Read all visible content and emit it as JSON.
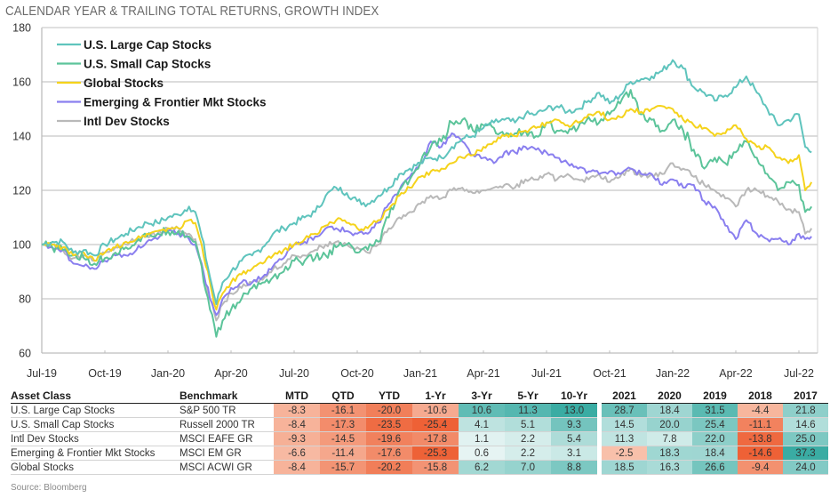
{
  "title": "CALENDAR YEAR & TRAILING TOTAL RETURNS, GROWTH INDEX",
  "source": "Source: Bloomberg",
  "chart_data": {
    "type": "line",
    "title": "CALENDAR YEAR & TRAILING TOTAL RETURNS, GROWTH INDEX",
    "xlabel": "",
    "ylabel": "",
    "ylim": [
      60,
      180
    ],
    "yticks": [
      60,
      80,
      100,
      120,
      140,
      160,
      180
    ],
    "xlim": [
      0,
      36.8
    ],
    "xticks": [
      {
        "pos": 0,
        "label": "Jul-19"
      },
      {
        "pos": 3,
        "label": "Oct-19"
      },
      {
        "pos": 6,
        "label": "Jan-20"
      },
      {
        "pos": 9,
        "label": "Apr-20"
      },
      {
        "pos": 12,
        "label": "Jul-20"
      },
      {
        "pos": 15,
        "label": "Oct-20"
      },
      {
        "pos": 18,
        "label": "Jan-21"
      },
      {
        "pos": 21,
        "label": "Apr-21"
      },
      {
        "pos": 24,
        "label": "Jul-21"
      },
      {
        "pos": 27,
        "label": "Oct-21"
      },
      {
        "pos": 30,
        "label": "Jan-22"
      },
      {
        "pos": 33,
        "label": "Apr-22"
      },
      {
        "pos": 36,
        "label": "Jul-22"
      }
    ],
    "grid": "horizontal",
    "legend_position": "top-left",
    "x_unit": "months since Jul-19",
    "series": [
      {
        "name": "U.S. Large Cap Stocks",
        "color": "#5fc4bd",
        "x": [
          0,
          0.5,
          1,
          1.5,
          2,
          2.5,
          3,
          3.5,
          4,
          4.5,
          5,
          5.5,
          6,
          6.5,
          7,
          7.3,
          7.6,
          8,
          8.3,
          8.6,
          9,
          9.5,
          10,
          10.5,
          11,
          11.5,
          12,
          12.5,
          13,
          13.5,
          14,
          14.5,
          15,
          15.5,
          16,
          16.5,
          17,
          17.5,
          18,
          18.5,
          19,
          19.5,
          20,
          20.5,
          21,
          21.5,
          22,
          22.5,
          23,
          23.5,
          24,
          24.5,
          25,
          25.5,
          26,
          26.5,
          27,
          27.5,
          28,
          28.5,
          29,
          29.5,
          30,
          30.5,
          31,
          31.5,
          32,
          32.5,
          33,
          33.5,
          34,
          34.5,
          35,
          35.5,
          36,
          36.3,
          36.6
        ],
        "values": [
          100,
          101,
          101,
          97,
          98,
          96,
          100,
          102,
          104,
          106,
          108,
          108,
          110,
          111,
          114,
          112,
          103,
          88,
          78,
          86,
          90,
          94,
          96,
          99,
          104,
          106,
          108,
          110,
          112,
          118,
          121,
          119,
          116,
          115,
          118,
          121,
          126,
          128,
          130,
          132,
          132,
          136,
          139,
          140,
          143,
          145,
          146,
          145,
          148,
          148,
          150,
          151,
          149,
          150,
          153,
          156,
          152,
          155,
          160,
          161,
          162,
          164,
          168,
          165,
          158,
          156,
          153,
          155,
          158,
          162,
          156,
          150,
          144,
          146,
          148,
          136,
          134
        ]
      },
      {
        "name": "U.S. Small Cap Stocks",
        "color": "#5cc49a",
        "x": [
          0,
          0.5,
          1,
          1.5,
          2,
          2.5,
          3,
          3.5,
          4,
          4.5,
          5,
          5.5,
          6,
          6.5,
          7,
          7.3,
          7.6,
          8,
          8.3,
          8.6,
          9,
          9.5,
          10,
          10.5,
          11,
          11.5,
          12,
          12.5,
          13,
          13.5,
          14,
          14.5,
          15,
          15.5,
          16,
          16.5,
          17,
          17.5,
          18,
          18.5,
          19,
          19.5,
          20,
          20.5,
          21,
          21.5,
          22,
          22.5,
          23,
          23.5,
          24,
          24.5,
          25,
          25.5,
          26,
          26.5,
          27,
          27.5,
          28,
          28.5,
          29,
          29.5,
          30,
          30.5,
          31,
          31.5,
          32,
          32.5,
          33,
          33.5,
          34,
          34.5,
          35,
          35.5,
          36,
          36.3,
          36.6
        ],
        "values": [
          100,
          99,
          98,
          96,
          95,
          93,
          95,
          97,
          99,
          101,
          103,
          104,
          105,
          105,
          103,
          101,
          92,
          76,
          66,
          72,
          76,
          80,
          84,
          86,
          88,
          90,
          94,
          94,
          95,
          96,
          99,
          100,
          97,
          98,
          101,
          110,
          120,
          124,
          130,
          136,
          138,
          145,
          146,
          142,
          144,
          143,
          140,
          141,
          142,
          140,
          145,
          142,
          141,
          143,
          147,
          145,
          148,
          152,
          157,
          148,
          146,
          142,
          146,
          142,
          135,
          128,
          132,
          130,
          134,
          138,
          132,
          126,
          120,
          123,
          122,
          112,
          114
        ]
      },
      {
        "name": "Global Stocks",
        "color": "#f5d31c",
        "x": [
          0,
          0.5,
          1,
          1.5,
          2,
          2.5,
          3,
          3.5,
          4,
          4.5,
          5,
          5.5,
          6,
          6.5,
          7,
          7.3,
          7.6,
          8,
          8.3,
          8.6,
          9,
          9.5,
          10,
          10.5,
          11,
          11.5,
          12,
          12.5,
          13,
          13.5,
          14,
          14.5,
          15,
          15.5,
          16,
          16.5,
          17,
          17.5,
          18,
          18.5,
          19,
          19.5,
          20,
          20.5,
          21,
          21.5,
          22,
          22.5,
          23,
          23.5,
          24,
          24.5,
          25,
          25.5,
          26,
          26.5,
          27,
          27.5,
          28,
          28.5,
          29,
          29.5,
          30,
          30.5,
          31,
          31.5,
          32,
          32.5,
          33,
          33.5,
          34,
          34.5,
          35,
          35.5,
          36,
          36.3,
          36.6
        ],
        "values": [
          100,
          100,
          99,
          96,
          97,
          94,
          97,
          99,
          101,
          102,
          104,
          105,
          106,
          106,
          109,
          108,
          100,
          86,
          76,
          82,
          86,
          89,
          91,
          93,
          96,
          98,
          100,
          102,
          104,
          107,
          109,
          108,
          106,
          106,
          109,
          113,
          118,
          121,
          125,
          127,
          128,
          130,
          132,
          133,
          136,
          138,
          140,
          140,
          142,
          143,
          145,
          146,
          144,
          145,
          148,
          149,
          146,
          147,
          150,
          149,
          150,
          151,
          150,
          146,
          144,
          143,
          140,
          141,
          144,
          139,
          136,
          136,
          132,
          130,
          133,
          120,
          123
        ]
      },
      {
        "name": "Emerging & Frontier Mkt Stocks",
        "color": "#8a7fef",
        "x": [
          0,
          0.5,
          1,
          1.5,
          2,
          2.5,
          3,
          3.5,
          4,
          4.5,
          5,
          5.5,
          6,
          6.5,
          7,
          7.3,
          7.6,
          8,
          8.3,
          8.6,
          9,
          9.5,
          10,
          10.5,
          11,
          11.5,
          12,
          12.5,
          13,
          13.5,
          14,
          14.5,
          15,
          15.5,
          16,
          16.5,
          17,
          17.5,
          18,
          18.5,
          19,
          19.5,
          20,
          20.5,
          21,
          21.5,
          22,
          22.5,
          23,
          23.5,
          24,
          24.5,
          25,
          25.5,
          26,
          26.5,
          27,
          27.5,
          28,
          28.5,
          29,
          29.5,
          30,
          30.5,
          31,
          31.5,
          32,
          32.5,
          33,
          33.5,
          34,
          34.5,
          35,
          35.5,
          36,
          36.3,
          36.6
        ],
        "values": [
          100,
          99,
          98,
          93,
          92,
          91,
          94,
          96,
          96,
          98,
          101,
          102,
          105,
          104,
          102,
          100,
          93,
          80,
          74,
          80,
          84,
          86,
          86,
          88,
          92,
          95,
          100,
          101,
          103,
          106,
          106,
          105,
          104,
          104,
          108,
          115,
          120,
          125,
          130,
          138,
          136,
          141,
          138,
          133,
          132,
          130,
          134,
          134,
          136,
          135,
          134,
          132,
          130,
          128,
          127,
          126,
          127,
          126,
          128,
          126,
          126,
          122,
          124,
          121,
          122,
          116,
          114,
          107,
          102,
          109,
          104,
          102,
          102,
          100,
          104,
          102,
          103
        ]
      },
      {
        "name": "Intl Dev Stocks",
        "color": "#b9b9b9",
        "x": [
          0,
          0.5,
          1,
          1.5,
          2,
          2.5,
          3,
          3.5,
          4,
          4.5,
          5,
          5.5,
          6,
          6.5,
          7,
          7.3,
          7.6,
          8,
          8.3,
          8.6,
          9,
          9.5,
          10,
          10.5,
          11,
          11.5,
          12,
          12.5,
          13,
          13.5,
          14,
          14.5,
          15,
          15.5,
          16,
          16.5,
          17,
          17.5,
          18,
          18.5,
          19,
          19.5,
          20,
          20.5,
          21,
          21.5,
          22,
          22.5,
          23,
          23.5,
          24,
          24.5,
          25,
          25.5,
          26,
          26.5,
          27,
          27.5,
          28,
          28.5,
          29,
          29.5,
          30,
          30.5,
          31,
          31.5,
          32,
          32.5,
          33,
          33.5,
          34,
          34.5,
          35,
          35.5,
          36,
          36.3,
          36.6
        ],
        "values": [
          100,
          100,
          98,
          95,
          96,
          94,
          97,
          99,
          100,
          102,
          103,
          104,
          106,
          106,
          104,
          102,
          93,
          80,
          72,
          78,
          82,
          84,
          86,
          87,
          91,
          93,
          96,
          96,
          98,
          100,
          101,
          100,
          99,
          97,
          100,
          106,
          110,
          112,
          115,
          118,
          117,
          120,
          121,
          119,
          120,
          121,
          122,
          121,
          124,
          124,
          126,
          124,
          126,
          124,
          124,
          126,
          123,
          125,
          128,
          125,
          126,
          126,
          130,
          128,
          125,
          122,
          120,
          117,
          114,
          120,
          120,
          118,
          116,
          113,
          112,
          104,
          106
        ]
      }
    ]
  },
  "table": {
    "headers": {
      "asset_class": "Asset Class",
      "benchmark": "Benchmark",
      "trailing": [
        "MTD",
        "QTD",
        "YTD",
        "1-Yr",
        "3-Yr",
        "5-Yr",
        "10-Yr"
      ],
      "calendar": [
        "2021",
        "2020",
        "2019",
        "2018",
        "2017"
      ]
    },
    "rows": [
      {
        "asset_class": "U.S. Large Cap Stocks",
        "benchmark": "S&P 500 TR",
        "trailing": [
          "-8.3",
          "-16.1",
          "-20.0",
          "-10.6",
          "10.6",
          "11.3",
          "13.0"
        ],
        "calendar": [
          "28.7",
          "18.4",
          "31.5",
          "-4.4",
          "21.8"
        ]
      },
      {
        "asset_class": "U.S. Small Cap Stocks",
        "benchmark": "Russell 2000 TR",
        "trailing": [
          "-8.4",
          "-17.3",
          "-23.5",
          "-25.4",
          "4.1",
          "5.1",
          "9.3"
        ],
        "calendar": [
          "14.5",
          "20.0",
          "25.4",
          "-11.1",
          "14.6"
        ]
      },
      {
        "asset_class": "Intl Dev Stocks",
        "benchmark": "MSCI EAFE GR",
        "trailing": [
          "-9.3",
          "-14.5",
          "-19.6",
          "-17.8",
          "1.1",
          "2.2",
          "5.4"
        ],
        "calendar": [
          "11.3",
          "7.8",
          "22.0",
          "-13.8",
          "25.0"
        ]
      },
      {
        "asset_class": "Emerging & Frontier Mkt Stocks",
        "benchmark": "MSCI EM GR",
        "trailing": [
          "-6.6",
          "-11.4",
          "-17.6",
          "-25.3",
          "0.6",
          "2.2",
          "3.1"
        ],
        "calendar": [
          "-2.5",
          "18.3",
          "18.4",
          "-14.6",
          "37.3"
        ]
      },
      {
        "asset_class": "Global Stocks",
        "benchmark": "MSCI ACWI GR",
        "trailing": [
          "-8.4",
          "-15.7",
          "-20.2",
          "-15.8",
          "6.2",
          "7.0",
          "8.8"
        ],
        "calendar": [
          "18.5",
          "16.3",
          "26.6",
          "-9.4",
          "24.0"
        ]
      }
    ]
  },
  "heat_colors": {
    "negative_strong": "#ee6136",
    "negative_light": "#f9c9b5",
    "positive_strong": "#3aaca3",
    "positive_light": "#eaf6f5"
  }
}
